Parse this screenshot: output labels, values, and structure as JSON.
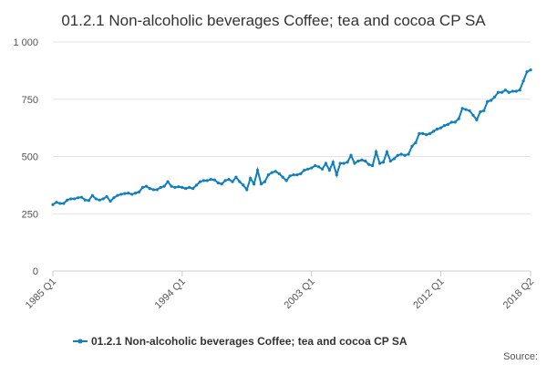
{
  "chart_data": {
    "type": "line",
    "title": "01.2.1 Non-alcoholic beverages Coffee; tea and cocoa CP SA",
    "source": "Source:",
    "categories": [
      "1985 Q1",
      null,
      null,
      null,
      null,
      null,
      null,
      null,
      null,
      null,
      null,
      null,
      null,
      null,
      null,
      null,
      null,
      null,
      null,
      null,
      null,
      null,
      null,
      null,
      null,
      null,
      null,
      null,
      null,
      null,
      null,
      null,
      null,
      null,
      null,
      null,
      "1994 Q1",
      null,
      null,
      null,
      null,
      null,
      null,
      null,
      null,
      null,
      null,
      null,
      null,
      null,
      null,
      null,
      null,
      null,
      null,
      null,
      null,
      null,
      null,
      null,
      null,
      null,
      null,
      null,
      null,
      null,
      null,
      null,
      null,
      null,
      null,
      null,
      "2003 Q1",
      null,
      null,
      null,
      null,
      null,
      null,
      null,
      null,
      null,
      null,
      null,
      null,
      null,
      null,
      null,
      null,
      null,
      null,
      null,
      null,
      null,
      null,
      null,
      null,
      null,
      null,
      null,
      null,
      null,
      null,
      null,
      null,
      null,
      null,
      null,
      "2012 Q1",
      null,
      null,
      null,
      null,
      null,
      null,
      null,
      null,
      null,
      null,
      null,
      null,
      null,
      null,
      null,
      null,
      null,
      null,
      null,
      null,
      null,
      null,
      null,
      null,
      "2018 Q2"
    ],
    "series": [
      {
        "name": "01.2.1 Non-alcoholic beverages Coffee; tea and cocoa CP SA",
        "color": "#0f7fbf",
        "values": [
          290,
          300,
          295,
          295,
          310,
          315,
          315,
          320,
          322,
          310,
          308,
          330,
          315,
          310,
          315,
          325,
          305,
          320,
          330,
          335,
          338,
          340,
          335,
          340,
          345,
          365,
          370,
          360,
          355,
          355,
          365,
          370,
          390,
          370,
          365,
          368,
          365,
          360,
          365,
          360,
          375,
          390,
          395,
          395,
          400,
          398,
          385,
          380,
          395,
          400,
          390,
          410,
          390,
          375,
          355,
          405,
          380,
          440,
          380,
          390,
          420,
          430,
          435,
          425,
          410,
          395,
          415,
          420,
          420,
          425,
          440,
          445,
          450,
          460,
          455,
          445,
          470,
          440,
          475,
          420,
          470,
          470,
          475,
          505,
          470,
          480,
          485,
          480,
          465,
          460,
          520,
          470,
          475,
          520,
          480,
          490,
          505,
          510,
          505,
          510,
          545,
          560,
          600,
          600,
          595,
          600,
          610,
          620,
          625,
          635,
          640,
          650,
          650,
          665,
          710,
          705,
          700,
          680,
          660,
          695,
          700,
          740,
          745,
          760,
          780,
          780,
          790,
          780,
          785,
          785,
          790,
          830,
          870,
          878
        ]
      }
    ],
    "ylim": [
      0,
      1000
    ],
    "yticks": [
      0,
      250,
      500,
      750,
      {
        "value": 1000,
        "label": "1 000"
      }
    ],
    "grid": true
  }
}
